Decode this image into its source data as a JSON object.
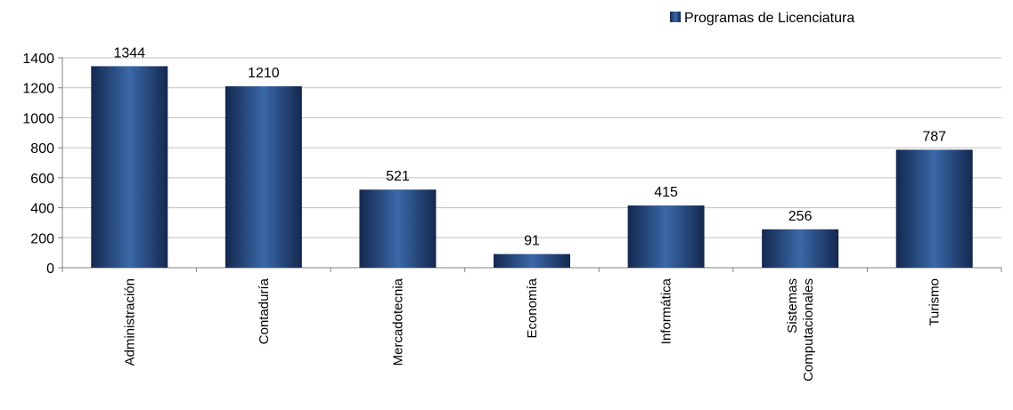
{
  "chart_data": {
    "type": "bar",
    "categories": [
      "Administración",
      "Contaduría",
      "Mercadotecnia",
      "Economía",
      "Informática",
      "Sistemas Computacionales",
      "Turismo"
    ],
    "category_lines": [
      [
        "Administración"
      ],
      [
        "Contaduría"
      ],
      [
        "Mercadotecnia"
      ],
      [
        "Economía"
      ],
      [
        "Informática"
      ],
      [
        "Sistemas",
        "Computacionales"
      ],
      [
        "Turismo"
      ]
    ],
    "series": [
      {
        "name": "Programas de Licenciatura",
        "values": [
          1344,
          1210,
          521,
          91,
          415,
          256,
          787
        ]
      }
    ],
    "data_labels": [
      "1344",
      "1210",
      "521",
      "91",
      "415",
      "256",
      "787"
    ],
    "ylim": [
      0,
      1400
    ],
    "yticks": [
      0,
      200,
      400,
      600,
      800,
      1000,
      1200,
      1400
    ],
    "grid": true,
    "legend_position": "top-right",
    "colors": {
      "bar_dark": "#14284f",
      "bar_light": "#3a68a8",
      "grid": "#bfbfbf",
      "axis": "#808080"
    }
  }
}
